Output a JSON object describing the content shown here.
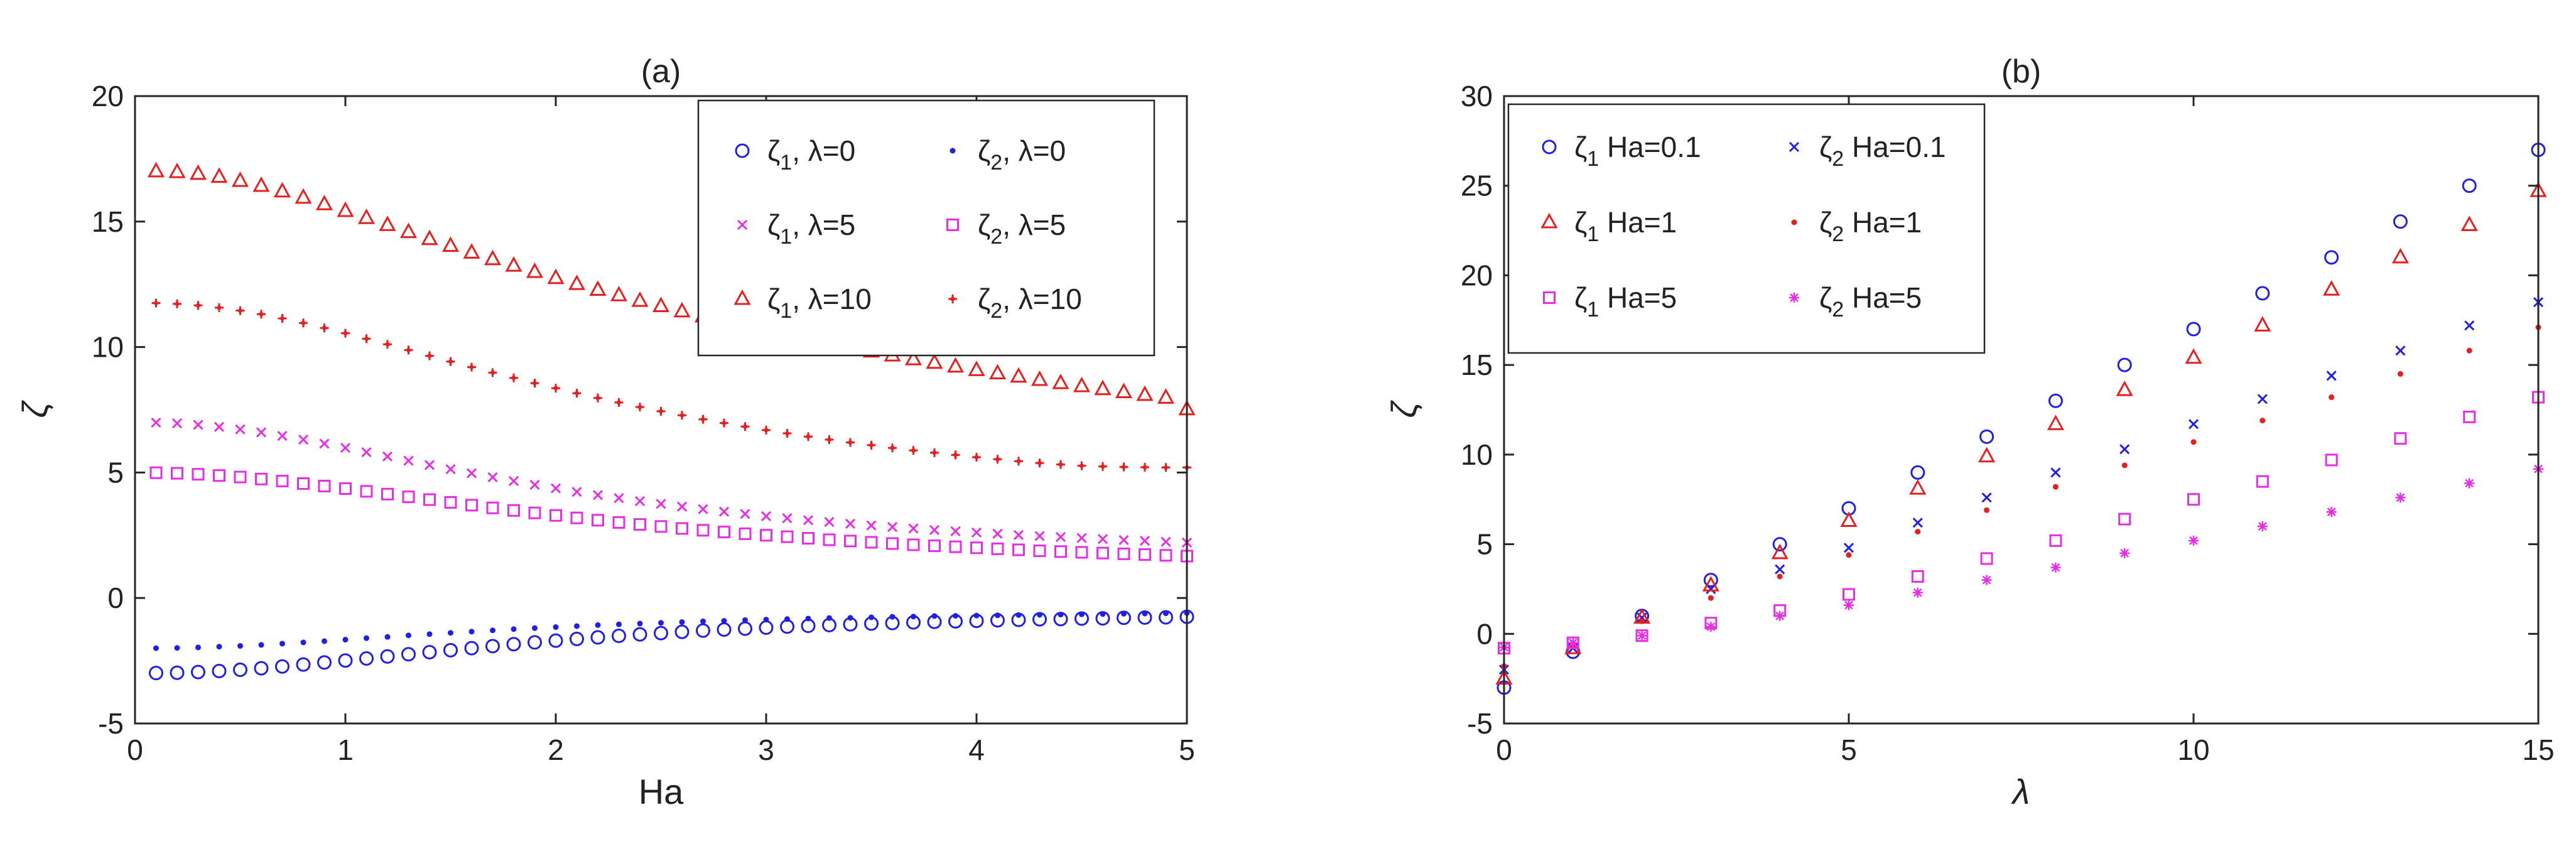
{
  "chart_data": [
    {
      "id": "panel-a",
      "type": "scatter",
      "title": "(a)",
      "xlabel": "Ha",
      "ylabel": "ζ",
      "xlim": [
        0,
        5
      ],
      "ylim": [
        -5,
        20
      ],
      "xticks": [
        0,
        1,
        2,
        3,
        4,
        5
      ],
      "yticks": [
        -5,
        0,
        5,
        10,
        15,
        20
      ],
      "xtick_labels": [
        "0",
        "1",
        "2",
        "3",
        "4",
        "5"
      ],
      "ytick_labels": [
        "-5",
        "0",
        "5",
        "10",
        "15",
        "20"
      ],
      "grid": false,
      "legend": {
        "placement": "top-right",
        "columns": 2,
        "entries": [
          {
            "symbol": "ζ",
            "sub": "1",
            "rest": ", λ=0",
            "series": 0
          },
          {
            "symbol": "ζ",
            "sub": "2",
            "rest": ", λ=0",
            "series": 1
          },
          {
            "symbol": "ζ",
            "sub": "1",
            "rest": ", λ=5",
            "series": 2
          },
          {
            "symbol": "ζ",
            "sub": "2",
            "rest": ", λ=5",
            "series": 3
          },
          {
            "symbol": "ζ",
            "sub": "1",
            "rest": ", λ=10",
            "series": 4
          },
          {
            "symbol": "ζ",
            "sub": "2",
            "rest": ", λ=10",
            "series": 5
          }
        ]
      },
      "x": [
        0.1,
        0.2,
        0.3,
        0.4,
        0.5,
        0.6,
        0.7,
        0.8,
        0.9,
        1.0,
        1.1,
        1.2,
        1.3,
        1.4,
        1.5,
        1.6,
        1.7,
        1.8,
        1.9,
        2.0,
        2.1,
        2.2,
        2.3,
        2.4,
        2.5,
        2.6,
        2.7,
        2.8,
        2.9,
        3.0,
        3.1,
        3.2,
        3.3,
        3.4,
        3.5,
        3.6,
        3.7,
        3.8,
        3.9,
        4.0,
        4.1,
        4.2,
        4.3,
        4.4,
        4.5,
        4.6,
        4.7,
        4.8,
        4.9,
        5.0
      ],
      "series": [
        {
          "name": "ζ1, λ=0",
          "marker": "circle",
          "color": "#1f1fe6",
          "values": [
            -2.99,
            -2.98,
            -2.95,
            -2.91,
            -2.86,
            -2.8,
            -2.73,
            -2.65,
            -2.57,
            -2.49,
            -2.41,
            -2.33,
            -2.24,
            -2.16,
            -2.08,
            -2.0,
            -1.92,
            -1.84,
            -1.77,
            -1.7,
            -1.63,
            -1.57,
            -1.51,
            -1.45,
            -1.4,
            -1.35,
            -1.3,
            -1.26,
            -1.22,
            -1.18,
            -1.14,
            -1.11,
            -1.08,
            -1.05,
            -1.02,
            -1.0,
            -0.97,
            -0.95,
            -0.93,
            -0.91,
            -0.89,
            -0.87,
            -0.85,
            -0.84,
            -0.82,
            -0.81,
            -0.79,
            -0.78,
            -0.77,
            -0.75
          ]
        },
        {
          "name": "ζ2, λ=0",
          "marker": "dot",
          "color": "#1f1fe6",
          "values": [
            -2.0,
            -1.99,
            -1.97,
            -1.94,
            -1.91,
            -1.87,
            -1.82,
            -1.77,
            -1.72,
            -1.66,
            -1.6,
            -1.55,
            -1.49,
            -1.44,
            -1.39,
            -1.34,
            -1.29,
            -1.24,
            -1.2,
            -1.16,
            -1.12,
            -1.08,
            -1.05,
            -1.02,
            -0.99,
            -0.96,
            -0.93,
            -0.91,
            -0.88,
            -0.86,
            -0.84,
            -0.82,
            -0.8,
            -0.79,
            -0.77,
            -0.75,
            -0.74,
            -0.72,
            -0.71,
            -0.7,
            -0.69,
            -0.68,
            -0.67,
            -0.66,
            -0.65,
            -0.64,
            -0.63,
            -0.62,
            -0.61,
            -0.6
          ]
        },
        {
          "name": "ζ1, λ=5",
          "marker": "x",
          "color": "#e62ee6",
          "values": [
            6.99,
            6.96,
            6.9,
            6.82,
            6.72,
            6.6,
            6.46,
            6.31,
            6.15,
            5.98,
            5.81,
            5.64,
            5.47,
            5.3,
            5.13,
            4.97,
            4.81,
            4.66,
            4.51,
            4.37,
            4.23,
            4.1,
            3.98,
            3.86,
            3.75,
            3.64,
            3.54,
            3.44,
            3.35,
            3.26,
            3.18,
            3.1,
            3.03,
            2.96,
            2.89,
            2.83,
            2.77,
            2.71,
            2.66,
            2.61,
            2.56,
            2.51,
            2.47,
            2.43,
            2.39,
            2.35,
            2.31,
            2.28,
            2.24,
            2.21
          ]
        },
        {
          "name": "ζ2, λ=5",
          "marker": "square",
          "color": "#e62ee6",
          "values": [
            4.99,
            4.97,
            4.93,
            4.88,
            4.82,
            4.74,
            4.66,
            4.56,
            4.46,
            4.36,
            4.25,
            4.14,
            4.03,
            3.92,
            3.81,
            3.7,
            3.59,
            3.49,
            3.39,
            3.29,
            3.19,
            3.1,
            3.01,
            2.93,
            2.85,
            2.77,
            2.7,
            2.63,
            2.56,
            2.5,
            2.44,
            2.38,
            2.32,
            2.27,
            2.22,
            2.17,
            2.12,
            2.08,
            2.04,
            2.0,
            1.96,
            1.92,
            1.88,
            1.85,
            1.82,
            1.79,
            1.76,
            1.73,
            1.7,
            1.67
          ]
        },
        {
          "name": "ζ1, λ=10",
          "marker": "triangle",
          "color": "#e61f1f",
          "values": [
            17.0,
            16.97,
            16.9,
            16.78,
            16.62,
            16.42,
            16.2,
            15.95,
            15.69,
            15.42,
            15.14,
            14.86,
            14.58,
            14.3,
            14.03,
            13.76,
            13.5,
            13.24,
            12.99,
            12.75,
            12.51,
            12.28,
            12.06,
            11.84,
            11.63,
            11.42,
            11.22,
            11.03,
            10.84,
            10.66,
            10.48,
            10.31,
            10.14,
            9.98,
            9.82,
            9.66,
            9.51,
            9.37,
            9.22,
            9.08,
            8.95,
            8.82,
            8.69,
            8.56,
            8.44,
            8.32,
            8.2,
            8.09,
            7.98,
            7.52
          ]
        },
        {
          "name": "ζ2, λ=10",
          "marker": "plus-dot",
          "color": "#e61f1f",
          "values": [
            11.75,
            11.72,
            11.66,
            11.57,
            11.45,
            11.31,
            11.14,
            10.96,
            10.76,
            10.55,
            10.33,
            10.11,
            9.88,
            9.65,
            9.42,
            9.2,
            8.98,
            8.77,
            8.56,
            8.36,
            8.16,
            7.97,
            7.79,
            7.61,
            7.44,
            7.28,
            7.12,
            6.97,
            6.83,
            6.69,
            6.56,
            6.43,
            6.31,
            6.2,
            6.09,
            5.98,
            5.88,
            5.79,
            5.7,
            5.61,
            5.53,
            5.45,
            5.38,
            5.32,
            5.27,
            5.24,
            5.22,
            5.21,
            5.2,
            5.2
          ]
        }
      ]
    },
    {
      "id": "panel-b",
      "type": "scatter",
      "title": "(b)",
      "xlabel": "λ",
      "ylabel": "ζ",
      "xlim": [
        0,
        15
      ],
      "ylim": [
        -5,
        30
      ],
      "xticks": [
        0,
        5,
        10,
        15
      ],
      "yticks": [
        -5,
        0,
        5,
        10,
        15,
        20,
        25,
        30
      ],
      "xtick_labels": [
        "0",
        "5",
        "10",
        "15"
      ],
      "ytick_labels": [
        "-5",
        "0",
        "5",
        "10",
        "15",
        "20",
        "25",
        "30"
      ],
      "grid": false,
      "legend": {
        "placement": "top-left",
        "columns": 2,
        "entries": [
          {
            "symbol": "ζ",
            "sub": "1",
            "rest": " Ha=0.1",
            "series": 0
          },
          {
            "symbol": "ζ",
            "sub": "2",
            "rest": " Ha=0.1",
            "series": 1
          },
          {
            "symbol": "ζ",
            "sub": "1",
            "rest": " Ha=1",
            "series": 2
          },
          {
            "symbol": "ζ",
            "sub": "2",
            "rest": " Ha=1",
            "series": 3
          },
          {
            "symbol": "ζ",
            "sub": "1",
            "rest": " Ha=5",
            "series": 4
          },
          {
            "symbol": "ζ",
            "sub": "2",
            "rest": " Ha=5",
            "series": 5
          }
        ]
      },
      "x": [
        0,
        1,
        2,
        3,
        4,
        5,
        6,
        7,
        8,
        9,
        10,
        11,
        12,
        13,
        14,
        15
      ],
      "series": [
        {
          "name": "ζ1 Ha=0.1",
          "marker": "circle",
          "color": "#1f1fe6",
          "values": [
            -3.0,
            -1.0,
            1.0,
            3.0,
            5.0,
            7.0,
            9.0,
            11.0,
            13.0,
            15.0,
            17.0,
            19.0,
            21.0,
            23.0,
            25.0,
            27.0
          ]
        },
        {
          "name": "ζ2 Ha=0.1",
          "marker": "x",
          "color": "#1f1fe6",
          "values": [
            -2.0,
            -0.8,
            0.9,
            2.5,
            3.6,
            4.8,
            6.2,
            7.6,
            9.0,
            10.3,
            11.7,
            13.1,
            14.4,
            15.8,
            17.2,
            18.5
          ]
        },
        {
          "name": "ζ1 Ha=1",
          "marker": "triangle",
          "color": "#e61f1f",
          "values": [
            -2.5,
            -0.8,
            0.9,
            2.7,
            4.5,
            6.3,
            8.1,
            9.9,
            11.7,
            13.6,
            15.4,
            17.2,
            19.2,
            21.0,
            22.8,
            24.7
          ]
        },
        {
          "name": "ζ2 Ha=1",
          "marker": "dot",
          "color": "#e61f1f",
          "values": [
            -1.8,
            -0.7,
            0.7,
            2.0,
            3.2,
            4.4,
            5.7,
            6.9,
            8.2,
            9.4,
            10.7,
            11.9,
            13.2,
            14.5,
            15.8,
            17.1
          ]
        },
        {
          "name": "ζ1 Ha=5",
          "marker": "square",
          "color": "#e62ee6",
          "values": [
            -0.8,
            -0.5,
            -0.1,
            0.6,
            1.3,
            2.2,
            3.2,
            4.2,
            5.2,
            6.4,
            7.5,
            8.5,
            9.7,
            10.9,
            12.1,
            13.2
          ]
        },
        {
          "name": "ζ2 Ha=5",
          "marker": "asterisk",
          "color": "#e62ee6",
          "values": [
            -0.75,
            -0.5,
            -0.1,
            0.4,
            1.0,
            1.6,
            2.3,
            3.0,
            3.7,
            4.5,
            5.2,
            6.0,
            6.8,
            7.6,
            8.4,
            9.2
          ]
        }
      ]
    }
  ]
}
